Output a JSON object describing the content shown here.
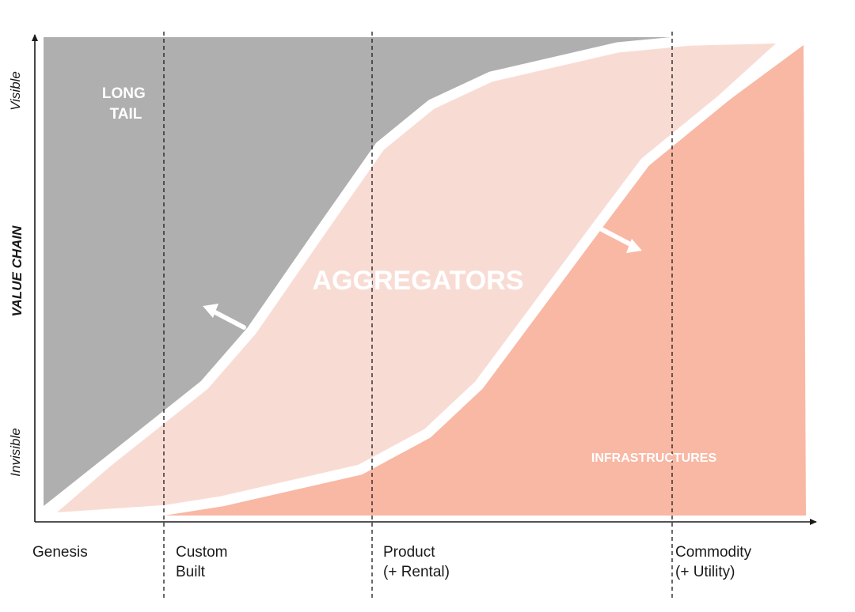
{
  "y_axis": {
    "title": "VALUE CHAIN",
    "top_label": "Visible",
    "bottom_label": "Invisible"
  },
  "stages": [
    {
      "label_lines": [
        "Genesis"
      ]
    },
    {
      "label_lines": [
        "Custom",
        "Built"
      ]
    },
    {
      "label_lines": [
        "Product",
        "(+ Rental)"
      ]
    },
    {
      "label_lines": [
        "Commodity",
        "(+ Utility)"
      ]
    }
  ],
  "regions": {
    "long_tail": {
      "label_lines": [
        "LONG",
        "TAIL"
      ],
      "color": "#afafaf"
    },
    "aggregators": {
      "label": "AGGREGATORS",
      "color": "#f8dcd4"
    },
    "infrastructures": {
      "label": "INFRASTRUCTURES",
      "color": "#f8b8a4"
    }
  },
  "arrows": [
    {
      "name": "long-tail-expansion-arrow",
      "direction": "up-left"
    },
    {
      "name": "infrastructure-expansion-arrow",
      "direction": "down-right"
    }
  ],
  "colors": {
    "axis": "#1a1a1a",
    "boundary": "#ffffff",
    "divider": "#1a1a1a"
  }
}
